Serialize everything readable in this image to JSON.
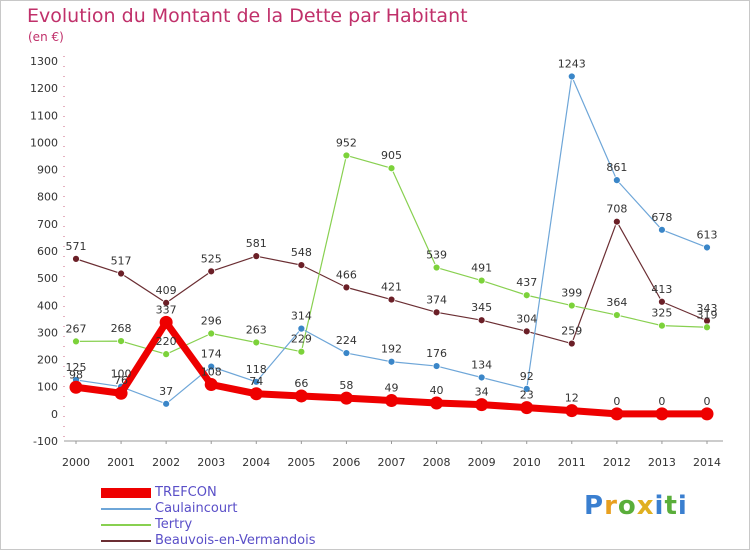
{
  "title": "Evolution du Montant de la Dette par Habitant",
  "unit": "(en €)",
  "logo": {
    "letters": [
      "P",
      "r",
      "o",
      "x",
      "i",
      "t",
      "i"
    ],
    "colors": [
      "#3a7fd0",
      "#e8a020",
      "#5aae3a",
      "#e0b020",
      "#3a7fd0",
      "#5aae3a",
      "#3a7fd0"
    ]
  },
  "chart_data": {
    "type": "line",
    "title": "Evolution du Montant de la Dette par Habitant",
    "ylabel": "(en €)",
    "xlabel": "",
    "x": [
      "2000",
      "2001",
      "2002",
      "2003",
      "2004",
      "2005",
      "2006",
      "2007",
      "2008",
      "2009",
      "2010",
      "2011",
      "2012",
      "2013",
      "2014"
    ],
    "ylim": [
      -100,
      1300
    ],
    "yticks": [
      -100,
      0,
      100,
      200,
      300,
      400,
      500,
      600,
      700,
      800,
      900,
      1000,
      1100,
      1200,
      1300
    ],
    "grid": false,
    "legend": "bottom-left",
    "series": [
      {
        "name": "Beauvois-en-Vermandois",
        "color": "#6b2e33",
        "marker": "#6b1f27",
        "width": 1.2,
        "values": [
          571,
          517,
          409,
          525,
          581,
          548,
          466,
          421,
          374,
          345,
          304,
          259,
          708,
          413,
          343
        ]
      },
      {
        "name": "Tertry",
        "color": "#88d050",
        "marker": "#7cd23a",
        "width": 1.2,
        "values": [
          267,
          268,
          220,
          296,
          263,
          229,
          952,
          905,
          539,
          491,
          437,
          399,
          364,
          325,
          319
        ]
      },
      {
        "name": "Caulaincourt",
        "color": "#6ea6d8",
        "marker": "#3a86c8",
        "width": 1.2,
        "values": [
          125,
          100,
          37,
          174,
          118,
          314,
          224,
          192,
          176,
          134,
          92,
          1243,
          861,
          678,
          613
        ]
      },
      {
        "name": "TREFCON",
        "color": "#ee0000",
        "marker": "#ee0000",
        "width": 7,
        "values": [
          98,
          76,
          337,
          108,
          74,
          66,
          58,
          49,
          40,
          34,
          23,
          12,
          0,
          0,
          0
        ]
      }
    ],
    "legend_order": [
      "TREFCON",
      "Caulaincourt",
      "Tertry",
      "Beauvois-en-Vermandois"
    ]
  }
}
